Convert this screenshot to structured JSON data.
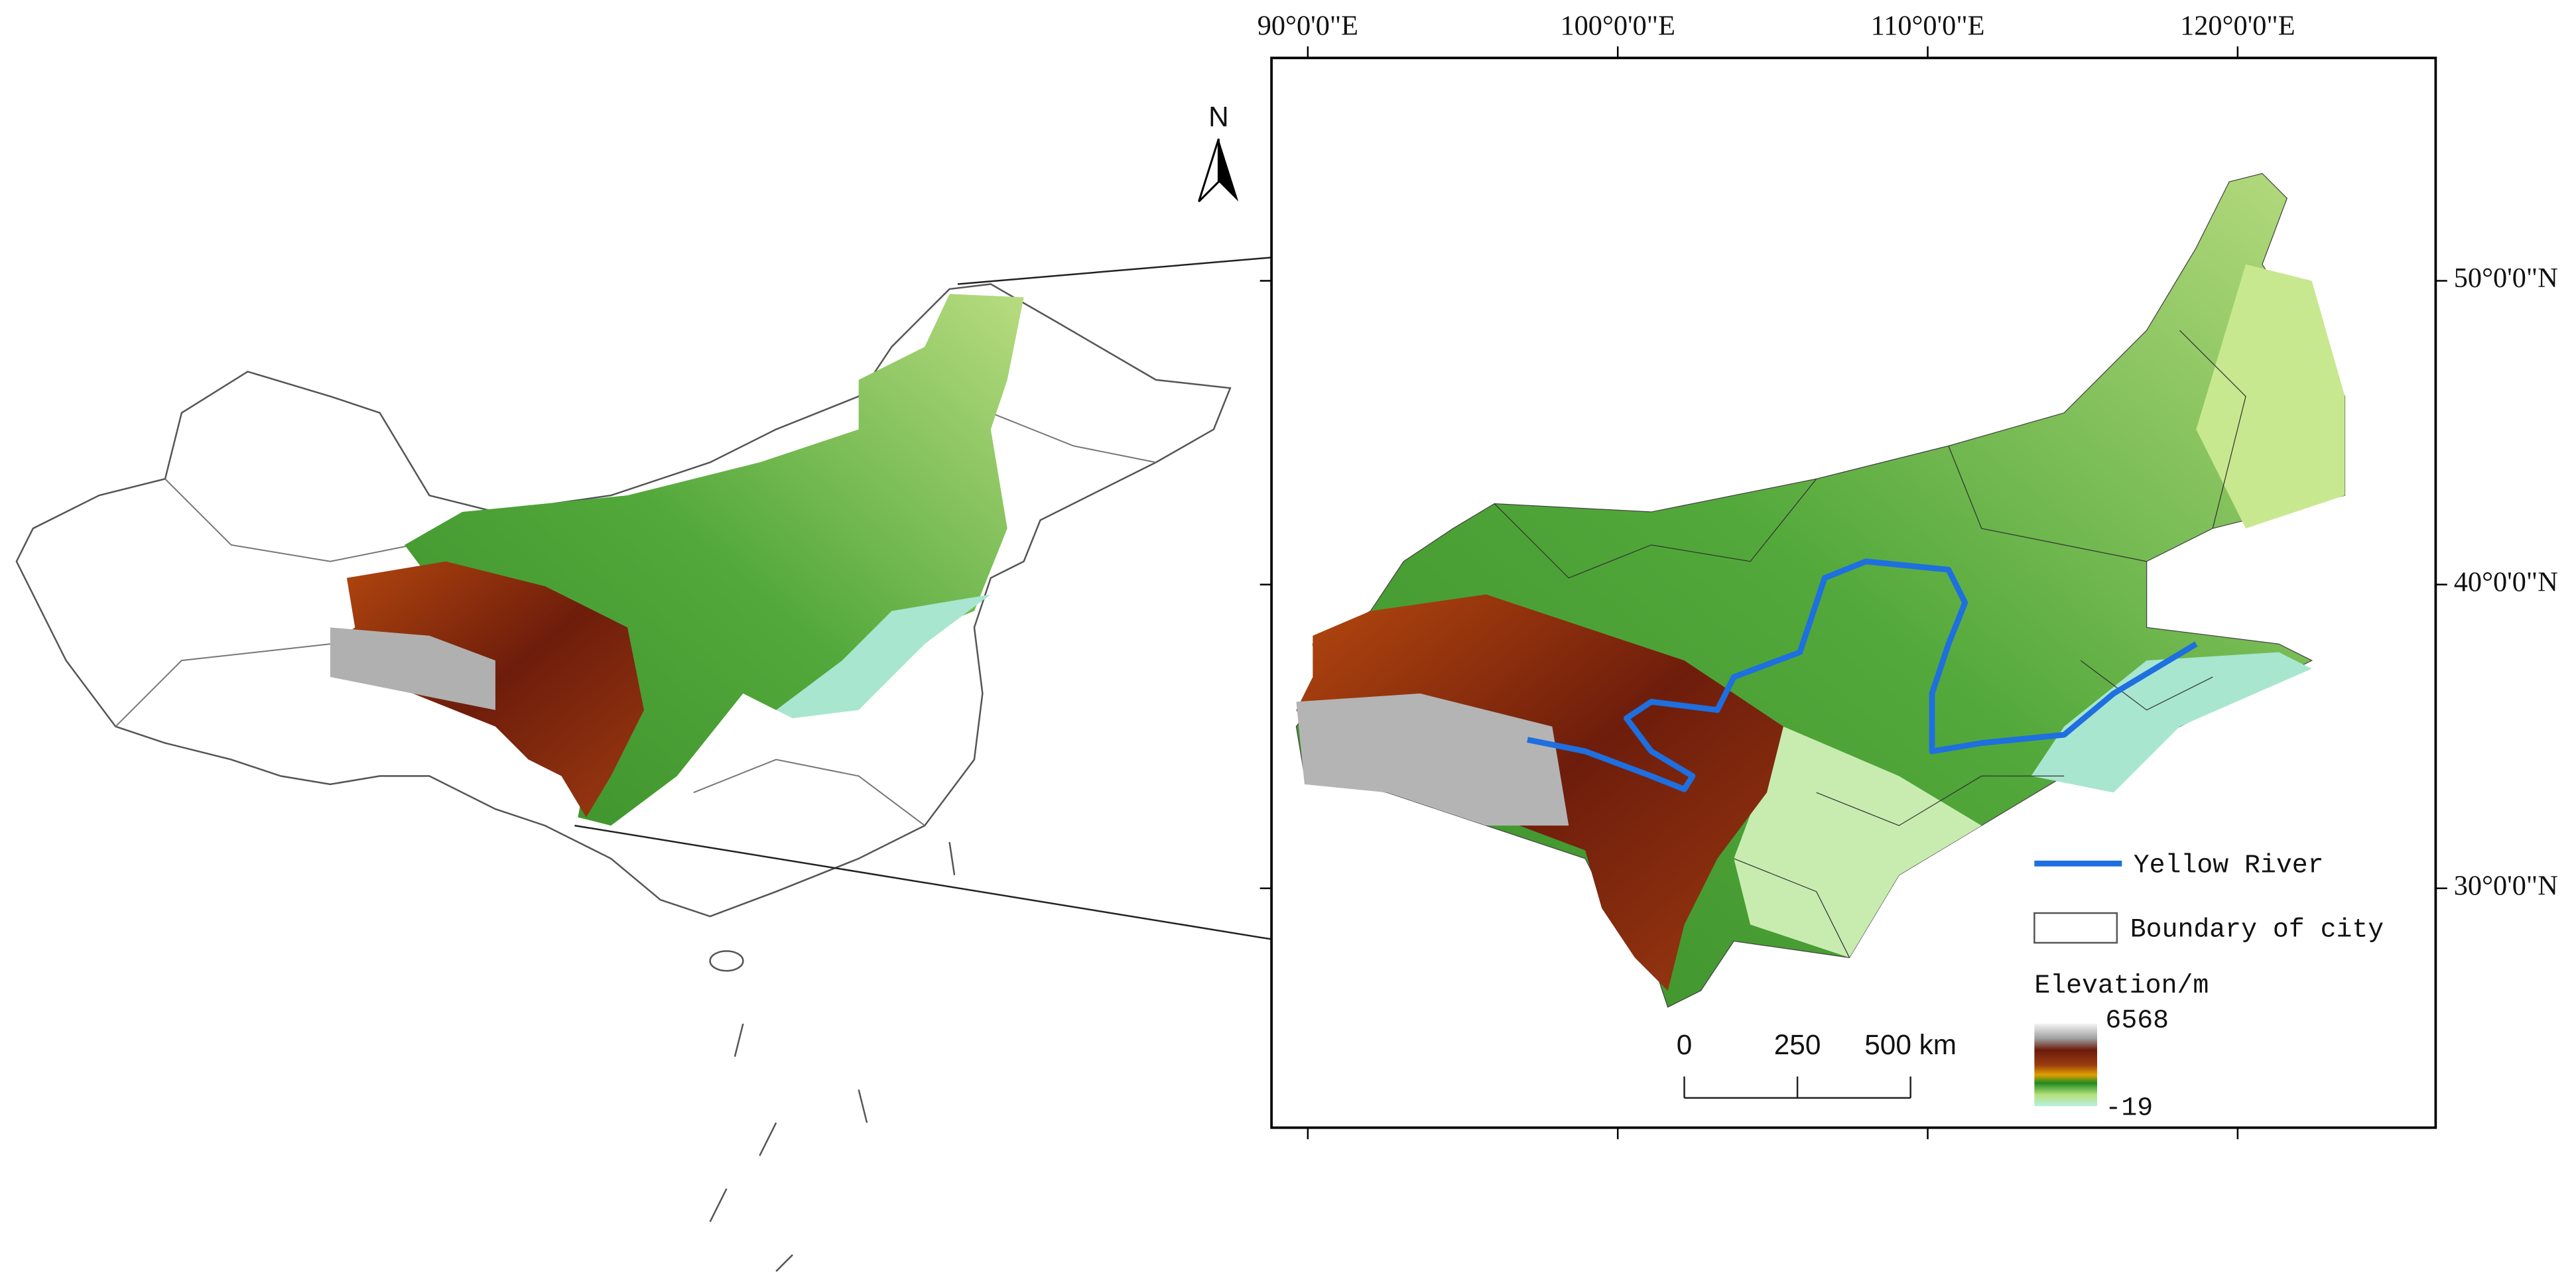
{
  "map": {
    "north_label": "N",
    "graticule": {
      "longitudes": [
        {
          "value": 90,
          "label": "90°0'0\"E"
        },
        {
          "value": 100,
          "label": "100°0'0\"E"
        },
        {
          "value": 110,
          "label": "110°0'0\"E"
        },
        {
          "value": 120,
          "label": "120°0'0\"E"
        }
      ],
      "latitudes": [
        {
          "value": 50,
          "label": "50°0'0\"N"
        },
        {
          "value": 40,
          "label": "40°0'0\"N"
        },
        {
          "value": 30,
          "label": "30°0'0\"N"
        }
      ]
    },
    "scale_bar": {
      "ticks": [
        0,
        250,
        {
          "value": 500,
          "label": "500 km"
        }
      ]
    },
    "legend": {
      "river": "Yellow River",
      "boundary": "Boundary of city",
      "elevation_title": "Elevation/m",
      "elevation_max": 6568,
      "elevation_min": -19
    }
  }
}
